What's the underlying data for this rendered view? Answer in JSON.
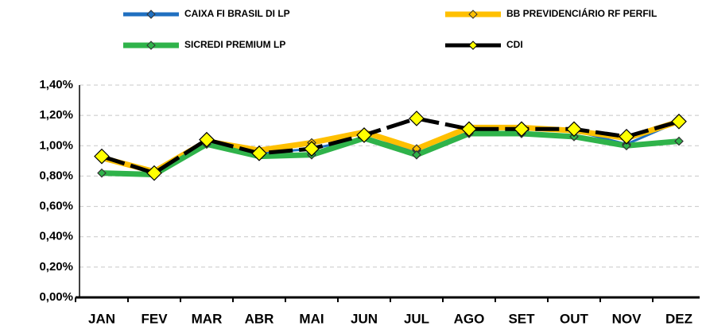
{
  "chart_data": {
    "type": "line",
    "categories": [
      "JAN",
      "FEV",
      "MAR",
      "ABR",
      "MAI",
      "JUN",
      "JUL",
      "AGO",
      "SET",
      "OUT",
      "NOV",
      "DEZ"
    ],
    "series": [
      {
        "name": "CAIXA FI BRASIL DI LP",
        "color": "#1f6fc0",
        "values": [
          0.92,
          0.82,
          1.02,
          0.95,
          0.98,
          1.05,
          0.97,
          1.13,
          1.13,
          1.1,
          1.01,
          1.16
        ]
      },
      {
        "name": "BB PREVIDENCIÁRIO RF PERFIL",
        "color": "#ffc000",
        "values": [
          0.92,
          0.83,
          1.03,
          0.97,
          1.02,
          1.09,
          0.98,
          1.12,
          1.12,
          1.1,
          1.05,
          1.16
        ]
      },
      {
        "name": "SICREDI PREMIUM LP",
        "color": "#2fb34a",
        "values": [
          0.82,
          0.81,
          1.01,
          0.93,
          0.94,
          1.05,
          0.94,
          1.08,
          1.08,
          1.06,
          1.0,
          1.03
        ]
      },
      {
        "name": "CDI",
        "color": "#000000",
        "values": [
          0.93,
          0.82,
          1.04,
          0.95,
          0.98,
          1.07,
          1.18,
          1.11,
          1.11,
          1.11,
          1.06,
          1.16
        ]
      }
    ],
    "ylim": [
      0,
      1.4
    ],
    "yticks": [
      {
        "value": 0,
        "label": "0,00%"
      },
      {
        "value": 0.2,
        "label": "0,20%"
      },
      {
        "value": 0.4,
        "label": "0,40%"
      },
      {
        "value": 0.6,
        "label": "0,60%"
      },
      {
        "value": 0.8,
        "label": "0,80%"
      },
      {
        "value": 1.0,
        "label": "1,00%"
      },
      {
        "value": 1.2,
        "label": "1,20%"
      },
      {
        "value": 1.4,
        "label": "1,40%"
      }
    ],
    "grid": true
  }
}
